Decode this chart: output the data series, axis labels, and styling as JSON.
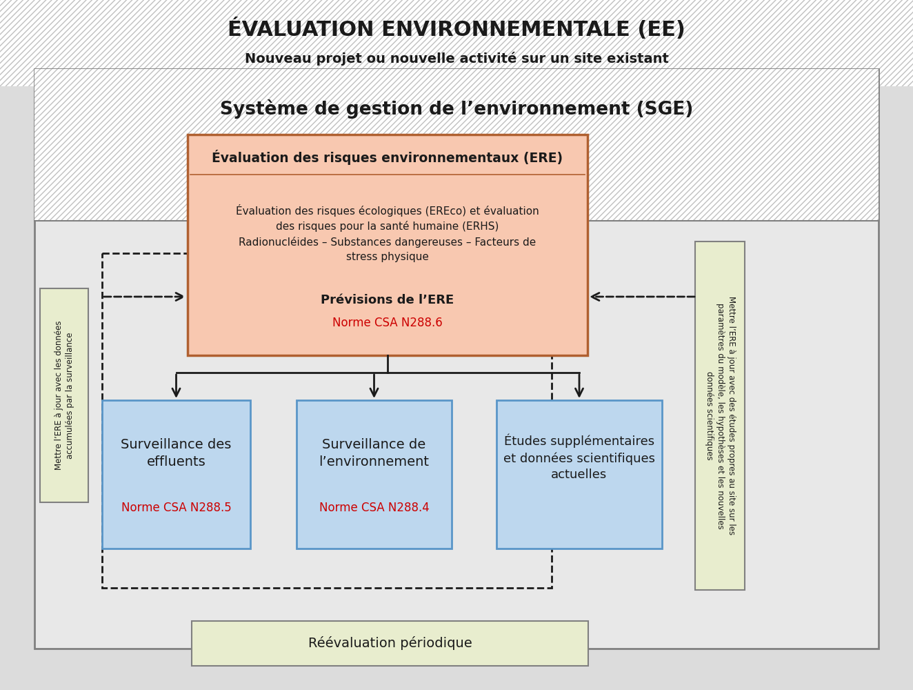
{
  "title_line1": "ÉVALUATION ENVIRONNEMENTALE (EE)",
  "title_line2": "Nouveau projet ou nouvelle activité sur un site existant",
  "sge_title": "Système de gestion de l’environnement (SGE)",
  "ere_title": "Évaluation des risques environnementaux (ERE)",
  "ere_body1": "Évaluation des risques écologiques (EREco) et évaluation\ndes risques pour la santé humaine (ERHS)\nRadionucléides – Substances dangereuses – Facteurs de\nstress physique",
  "ere_preview": "Prévisions de l’ERE",
  "ere_norm": "Norme CSA N288.6",
  "box1_text": "Surveillance des\neffluents",
  "box1_norm": "Norme CSA N288.5",
  "box2_text": "Surveillance de\nl’environnement",
  "box2_norm": "Norme CSA N288.4",
  "box3_text": "Études supplémentaires\net données scientifiques\nactuelles",
  "reeval": "Réévaluation périodique",
  "left_text": "Mettre l’ERE à jour avec les données\naccumulées par la surveillance",
  "right_text": "Mettre l’ERE à jour avec des études propres au site sur les\nparamètres du modèle, les hypothèses et les nouvelles\ndonnées scientifiques",
  "C_BG": "#dcdcdc",
  "C_WHITE": "#ffffff",
  "C_HATCH": "#c0c0c0",
  "C_SGE_BG": "#ebebeb",
  "C_INNER_BG": "#e8e8e8",
  "C_ERE_BG": "#f8c8b0",
  "C_ERE_BD": "#b06030",
  "C_BOX_BG": "#bdd7ee",
  "C_BOX_BD": "#5a96c8",
  "C_SIDE_BG": "#e8edce",
  "C_REEV_BG": "#e8edce",
  "C_RED": "#cc0000",
  "C_GRAY": "#808080",
  "C_DGRAY": "#606060",
  "C_BLACK": "#1a1a1a"
}
